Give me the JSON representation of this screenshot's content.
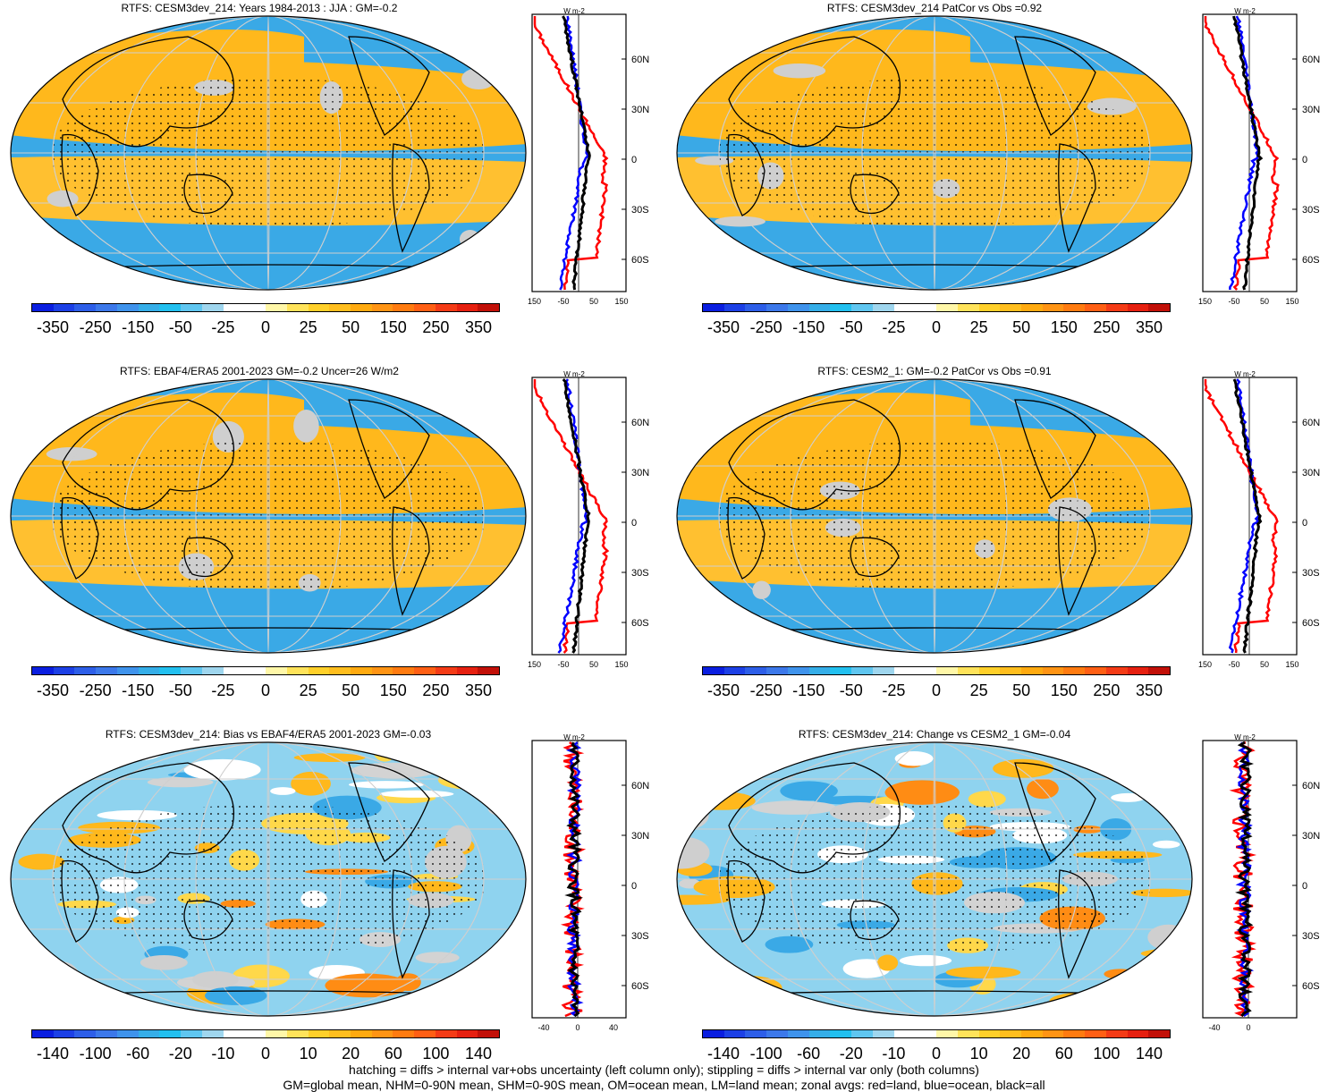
{
  "panels": [
    {
      "title": "RTFS: CESM3dev_214: Years 1984-2013 : JJA : GM=-0.2",
      "colorbar_labels": [
        "-350",
        "-250",
        "-150",
        "-50",
        "-25",
        "0",
        "25",
        "50",
        "150",
        "250",
        "350"
      ],
      "zonal_ticks": [
        "-150",
        "-50",
        "50",
        "150"
      ],
      "lat_labels": [
        "60N",
        "30N",
        "0",
        "30S",
        "60S"
      ],
      "unit": "W m-2"
    },
    {
      "title": "RTFS: CESM3dev_214 PatCor vs Obs =0.92",
      "colorbar_labels": [
        "-350",
        "-250",
        "-150",
        "-50",
        "-25",
        "0",
        "25",
        "50",
        "150",
        "250",
        "350"
      ],
      "zonal_ticks": [
        "-150",
        "-50",
        "50",
        "150"
      ],
      "lat_labels": [
        "60N",
        "30N",
        "0",
        "30S",
        "60S"
      ],
      "unit": "W m-2"
    },
    {
      "title": "RTFS: EBAF4/ERA5 2001-2023 GM=-0.2 Uncer=26 W/m2",
      "colorbar_labels": [
        "-350",
        "-250",
        "-150",
        "-50",
        "-25",
        "0",
        "25",
        "50",
        "150",
        "250",
        "350"
      ],
      "zonal_ticks": [
        "-150",
        "-50",
        "50",
        "150"
      ],
      "lat_labels": [
        "60N",
        "30N",
        "0",
        "30S",
        "60S"
      ],
      "unit": "W m-2"
    },
    {
      "title": "RTFS: CESM2_1: GM=-0.2 PatCor vs Obs =0.91",
      "colorbar_labels": [
        "-350",
        "-250",
        "-150",
        "-50",
        "-25",
        "0",
        "25",
        "50",
        "150",
        "250",
        "350"
      ],
      "zonal_ticks": [
        "-150",
        "-50",
        "50",
        "150"
      ],
      "lat_labels": [
        "60N",
        "30N",
        "0",
        "30S",
        "60S"
      ],
      "unit": "W m-2"
    },
    {
      "title": "RTFS: CESM3dev_214: Bias vs EBAF4/ERA5 2001-2023 GM=-0.03",
      "colorbar_labels": [
        "-140",
        "-100",
        "-60",
        "-20",
        "-10",
        "0",
        "10",
        "20",
        "60",
        "100",
        "140"
      ],
      "zonal_ticks": [
        "-40",
        "0",
        "40"
      ],
      "lat_labels": [
        "60N",
        "30N",
        "0",
        "30S",
        "60S"
      ],
      "unit": "W m-2"
    },
    {
      "title": "RTFS: CESM3dev_214: Change vs CESM2_1 GM=-0.04",
      "colorbar_labels": [
        "-140",
        "-100",
        "-60",
        "-20",
        "-10",
        "0",
        "10",
        "20",
        "60",
        "100",
        "140"
      ],
      "zonal_ticks": [
        "-40",
        "0"
      ],
      "lat_labels": [
        "60N",
        "30N",
        "0",
        "30S",
        "60S"
      ],
      "unit": "W m-2"
    }
  ],
  "colorbar_colors": [
    "#0a1ee0",
    "#1c40e6",
    "#2d5ee8",
    "#3c78ea",
    "#3f93ec",
    "#35aee8",
    "#22c0ef",
    "#5fc6f0",
    "#9fd6ee",
    "#ffffff",
    "#ffffff",
    "#fff7a8",
    "#ffe35a",
    "#ffd02a",
    "#ffbe1e",
    "#ffaa10",
    "#ff9414",
    "#ff7b10",
    "#ff5f14",
    "#f43b16",
    "#e62010",
    "#c21008"
  ],
  "footer": {
    "line1": "hatching = diffs > internal var+obs uncertainty (left column only); stippling = diffs > internal var only (both columns)",
    "line2": "GM=global mean, NHM=0-90N mean, SHM=0-90S mean, OM=ocean mean, LM=land mean; zonal avgs: red=land, blue=ocean, black=all"
  },
  "colors": {
    "ocean_blue": "#36a8e6",
    "warm": "#ffb81c",
    "land_line": "#000000",
    "red_series": "#ff0000",
    "blue_series": "#0000ff",
    "black_series": "#000000"
  }
}
